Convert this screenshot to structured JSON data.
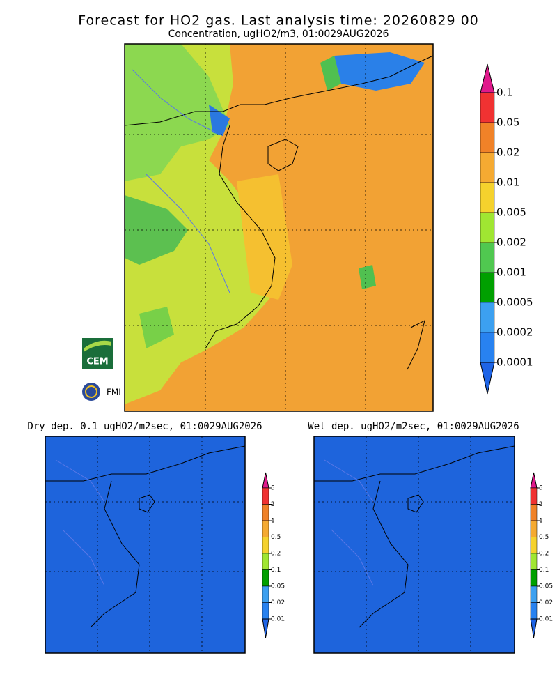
{
  "header": {
    "title": "Forecast for HO2 gas. Last analysis time: 20260829 00",
    "subtitle": "Concentration, ugHO2/m3, 01:0029AUG2026"
  },
  "main_colorbar": {
    "labels": [
      "0.1",
      "0.05",
      "0.02",
      "0.01",
      "0.005",
      "0.002",
      "0.001",
      "0.0005",
      "0.0002",
      "0.0001"
    ],
    "colors": [
      "#e0198c",
      "#f03232",
      "#f08228",
      "#f5aa32",
      "#f5d22d",
      "#a0e632",
      "#50c850",
      "#00a000",
      "#3ca0f0",
      "#2882f0",
      "#1e64e6"
    ]
  },
  "panels": [
    {
      "title": "Dry dep. 0.1 ugHO2/m2sec, 01:0029AUG2026",
      "colorbar": {
        "labels": [
          "5",
          "2",
          "1",
          "0.5",
          "0.2",
          "0.1",
          "0.05",
          "0.02",
          "0.01"
        ],
        "colors": [
          "#e0198c",
          "#f03232",
          "#f08228",
          "#f5aa32",
          "#f5d22d",
          "#a0e632",
          "#00a000",
          "#3ca0f0",
          "#2882f0",
          "#1e64e6"
        ]
      }
    },
    {
      "title": "Wet dep. ugHO2/m2sec, 01:0029AUG2026",
      "colorbar": {
        "labels": [
          "5",
          "2",
          "1",
          "0.5",
          "0.2",
          "0.1",
          "0.05",
          "0.02",
          "0.01"
        ],
        "colors": [
          "#e0198c",
          "#f03232",
          "#f08228",
          "#f5aa32",
          "#f5d22d",
          "#a0e632",
          "#00a000",
          "#3ca0f0",
          "#2882f0",
          "#1e64e6"
        ]
      }
    }
  ],
  "logos": {
    "cem": "CEM",
    "fmi": "FMI"
  }
}
